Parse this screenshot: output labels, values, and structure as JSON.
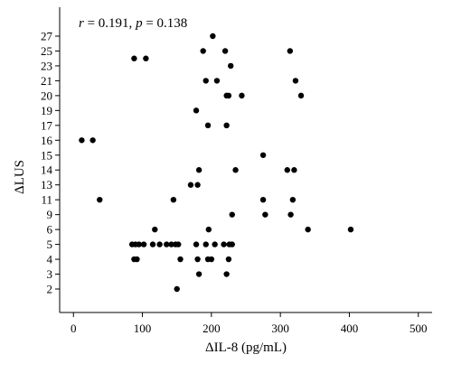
{
  "chart_data": {
    "type": "scatter",
    "annotation": "r = 0.191, p = 0.138",
    "annotation_parts": {
      "r_sym": "r",
      "r_val": " = 0.191, ",
      "p_sym": "p",
      "p_val": " = 0.138"
    },
    "xlabel": "ΔIL-8 (pg/mL)",
    "ylabel": "ΔLUS",
    "xlim": [
      -20,
      520
    ],
    "x_ticks": [
      0,
      100,
      200,
      300,
      400,
      500
    ],
    "y_ticks": [
      2,
      3,
      4,
      5,
      6,
      9,
      11,
      13,
      14,
      15,
      16,
      17,
      19,
      20,
      21,
      23,
      25,
      27
    ],
    "grid": false,
    "points": [
      {
        "x": 12,
        "y": 16
      },
      {
        "x": 28,
        "y": 16
      },
      {
        "x": 38,
        "y": 11
      },
      {
        "x": 88,
        "y": 24
      },
      {
        "x": 105,
        "y": 24
      },
      {
        "x": 85,
        "y": 5
      },
      {
        "x": 90,
        "y": 5
      },
      {
        "x": 95,
        "y": 5
      },
      {
        "x": 102,
        "y": 5
      },
      {
        "x": 88,
        "y": 4
      },
      {
        "x": 92,
        "y": 4
      },
      {
        "x": 115,
        "y": 5
      },
      {
        "x": 118,
        "y": 6
      },
      {
        "x": 125,
        "y": 5
      },
      {
        "x": 135,
        "y": 5
      },
      {
        "x": 142,
        "y": 5
      },
      {
        "x": 148,
        "y": 5
      },
      {
        "x": 152,
        "y": 5
      },
      {
        "x": 145,
        "y": 11
      },
      {
        "x": 150,
        "y": 2
      },
      {
        "x": 155,
        "y": 4
      },
      {
        "x": 170,
        "y": 13
      },
      {
        "x": 178,
        "y": 19
      },
      {
        "x": 180,
        "y": 13
      },
      {
        "x": 182,
        "y": 14
      },
      {
        "x": 178,
        "y": 5
      },
      {
        "x": 180,
        "y": 4
      },
      {
        "x": 182,
        "y": 3
      },
      {
        "x": 188,
        "y": 25
      },
      {
        "x": 192,
        "y": 21
      },
      {
        "x": 195,
        "y": 17
      },
      {
        "x": 196,
        "y": 6
      },
      {
        "x": 195,
        "y": 4
      },
      {
        "x": 200,
        "y": 4
      },
      {
        "x": 192,
        "y": 5
      },
      {
        "x": 202,
        "y": 27
      },
      {
        "x": 205,
        "y": 5
      },
      {
        "x": 208,
        "y": 21
      },
      {
        "x": 218,
        "y": 5
      },
      {
        "x": 220,
        "y": 25
      },
      {
        "x": 222,
        "y": 17
      },
      {
        "x": 222,
        "y": 20
      },
      {
        "x": 225,
        "y": 20
      },
      {
        "x": 222,
        "y": 3
      },
      {
        "x": 225,
        "y": 4
      },
      {
        "x": 226,
        "y": 5
      },
      {
        "x": 228,
        "y": 23
      },
      {
        "x": 230,
        "y": 9
      },
      {
        "x": 230,
        "y": 5
      },
      {
        "x": 235,
        "y": 14
      },
      {
        "x": 244,
        "y": 20
      },
      {
        "x": 275,
        "y": 15
      },
      {
        "x": 275,
        "y": 11
      },
      {
        "x": 278,
        "y": 9
      },
      {
        "x": 310,
        "y": 14
      },
      {
        "x": 314,
        "y": 25
      },
      {
        "x": 315,
        "y": 9
      },
      {
        "x": 318,
        "y": 11
      },
      {
        "x": 320,
        "y": 14
      },
      {
        "x": 322,
        "y": 21
      },
      {
        "x": 330,
        "y": 20
      },
      {
        "x": 340,
        "y": 6
      },
      {
        "x": 402,
        "y": 6
      }
    ]
  }
}
